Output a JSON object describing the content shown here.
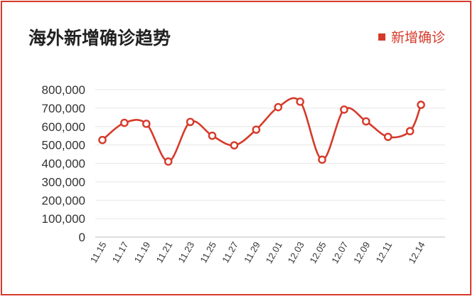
{
  "chart_data": {
    "type": "line",
    "title": "海外新增确诊趋势",
    "legend": {
      "position": "top-right",
      "entries": [
        "新增确诊"
      ]
    },
    "series": [
      {
        "name": "新增确诊",
        "color": "#d63a2a",
        "points": [
          {
            "x": "11.15",
            "y": 527000
          },
          {
            "x": "11.17",
            "y": 620000
          },
          {
            "x": "11.19",
            "y": 615000
          },
          {
            "x": "11.21",
            "y": 410000
          },
          {
            "x": "11.23",
            "y": 625000
          },
          {
            "x": "11.25",
            "y": 550000
          },
          {
            "x": "11.27",
            "y": 498000
          },
          {
            "x": "11.29",
            "y": 583000
          },
          {
            "x": "12.01",
            "y": 705000
          },
          {
            "x": "12.03",
            "y": 735000
          },
          {
            "x": "12.05",
            "y": 420000
          },
          {
            "x": "12.07",
            "y": 692000
          },
          {
            "x": "12.09",
            "y": 628000
          },
          {
            "x": "12.11",
            "y": 544000
          },
          {
            "x": "12.13",
            "y": 575000
          },
          {
            "x": "12.14",
            "y": 718000
          }
        ]
      }
    ],
    "x_tick_labels": [
      "11.15",
      "11.17",
      "11.19",
      "11.21",
      "11.23",
      "11.25",
      "11.27",
      "11.29",
      "12.01",
      "12.03",
      "12.05",
      "12.07",
      "12.09",
      "12.11",
      "12.14"
    ],
    "y_tick_labels": [
      "0",
      "100,000",
      "200,000",
      "300,000",
      "400,000",
      "500,000",
      "600,000",
      "700,000",
      "800,000"
    ],
    "ylim": [
      0,
      800000
    ],
    "grid": true
  }
}
